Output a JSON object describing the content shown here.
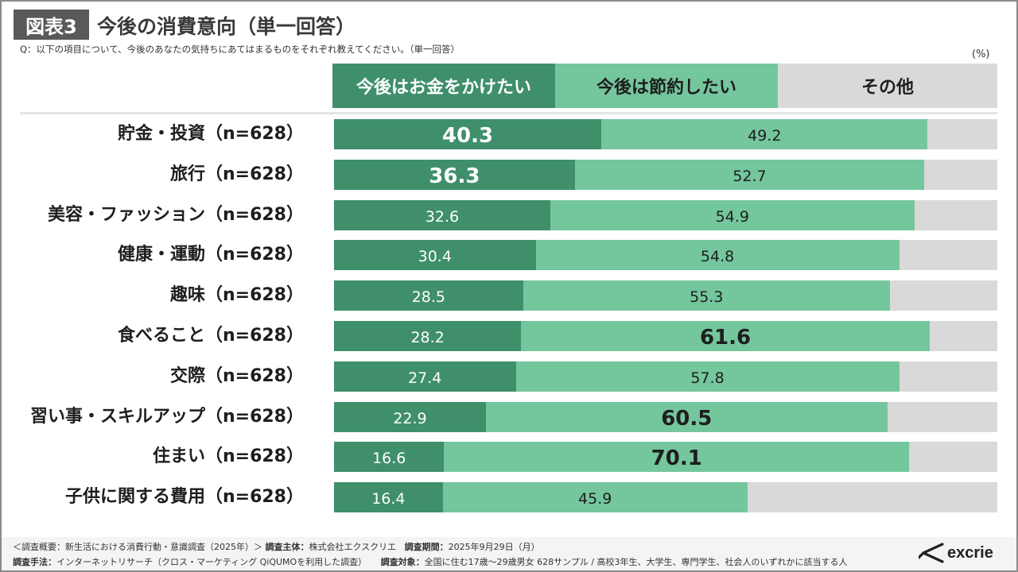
{
  "header": {
    "badge": "図表3",
    "title": "今後の消費意向（単一回答）",
    "question": "Q：以下の項目について、今後のあなたの気持ちにあてはまるものをそれぞれ教えてください。（単一回答）",
    "unit": "(%)"
  },
  "legend": {
    "spend": "今後はお金をかけたい",
    "save": "今後は節約したい",
    "other": "その他"
  },
  "colors": {
    "spend": "#3f8f6b",
    "save": "#74c69d",
    "other": "#d9d9d9"
  },
  "chart_data": {
    "type": "bar",
    "orientation": "horizontal",
    "stacked": true,
    "unit": "%",
    "categories": [
      "貯金・投資（n=628）",
      "旅行（n=628）",
      "美容・ファッション（n=628）",
      "健康・運動（n=628）",
      "趣味（n=628）",
      "食べること（n=628）",
      "交際（n=628）",
      "習い事・スキルアップ（n=628）",
      "住まい（n=628）",
      "子供に関する費用（n=628）"
    ],
    "series": [
      {
        "name": "今後はお金をかけたい",
        "values": [
          40.3,
          36.3,
          32.6,
          30.4,
          28.5,
          28.2,
          27.4,
          22.9,
          16.6,
          16.4
        ]
      },
      {
        "name": "今後は節約したい",
        "values": [
          49.2,
          52.7,
          54.9,
          54.8,
          55.3,
          61.6,
          57.8,
          60.5,
          70.1,
          45.9
        ]
      }
    ],
    "data_labels": [
      [
        "40.3",
        "36.3",
        "32.6",
        "30.4",
        "28.5",
        "28.2",
        "27.4",
        "22.9",
        "16.6",
        "16.4"
      ],
      [
        "49.2",
        "52.7",
        "54.9",
        "54.8",
        "55.3",
        "61.6",
        "57.8",
        "60.5",
        "70.1",
        "45.9"
      ]
    ],
    "emphasized": [
      [
        true,
        true,
        false,
        false,
        false,
        false,
        false,
        false,
        false,
        false
      ],
      [
        false,
        false,
        false,
        false,
        false,
        true,
        false,
        true,
        true,
        false
      ]
    ],
    "xlim": [
      0,
      100
    ],
    "legend_position": "top"
  },
  "footer": {
    "line1_prefix": "＜調査概要：新生活における消費行動・意識調査（2025年）＞",
    "sponsor_label": "調査主体：",
    "sponsor": "株式会社エクスクリエ",
    "period_label": "調査期間：",
    "period": "2025年9月29日（月）",
    "method_label": "調査手法：",
    "method": "インターネットリサーチ（クロス・マーケティング QiQUMOを利用した調査）",
    "target_label": "調査対象：",
    "target": "全国に住む17歳〜29歳男女 628サンプル / 高校3年生、大学生、専門学生、社会人のいずれかに該当する人"
  },
  "logo": {
    "text": "excrie"
  }
}
